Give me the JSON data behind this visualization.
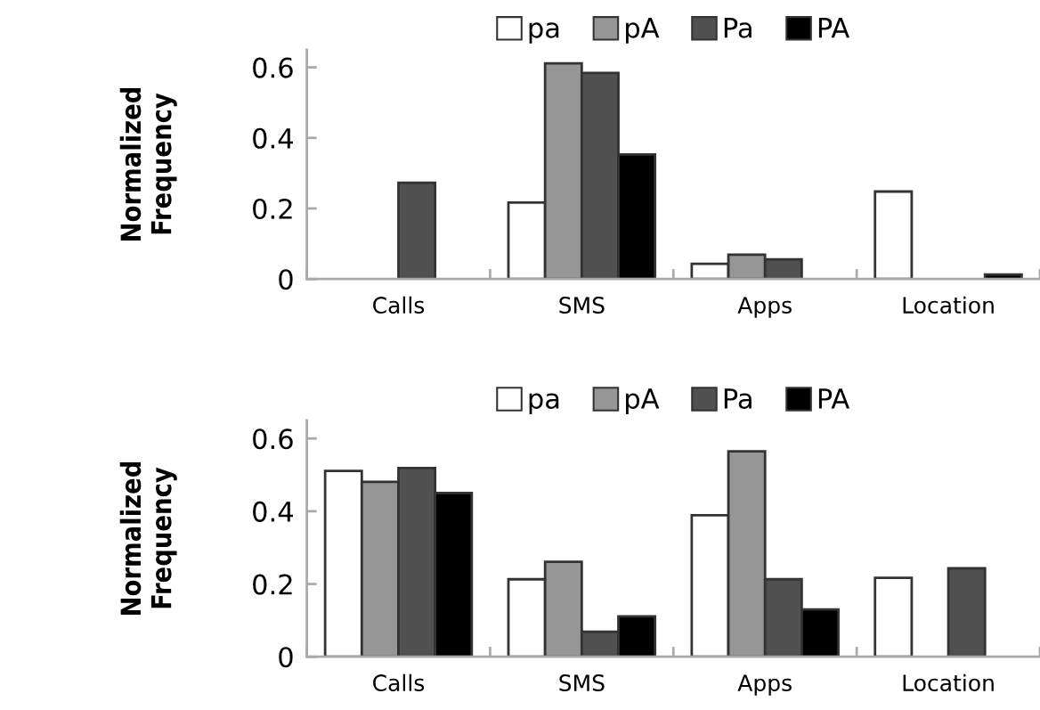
{
  "chart_data": [
    {
      "type": "bar",
      "ylabel": "Normalized\nFrequency",
      "categories": [
        "Calls",
        "SMS",
        "Apps",
        "Location"
      ],
      "ylim": [
        0,
        0.65
      ],
      "yticks": [
        0,
        0.2,
        0.4,
        0.6
      ],
      "legend": "top",
      "series": [
        {
          "name": "pa",
          "color": "#ffffff",
          "values": [
            null,
            0.217,
            0.043,
            0.248
          ]
        },
        {
          "name": "pA",
          "color": "#969696",
          "values": [
            null,
            0.611,
            0.069,
            null
          ]
        },
        {
          "name": "Pa",
          "color": "#505050",
          "values": [
            0.273,
            0.584,
            0.056,
            null
          ]
        },
        {
          "name": "PA",
          "color": "#000000",
          "values": [
            null,
            0.353,
            null,
            0.013
          ]
        }
      ]
    },
    {
      "type": "bar",
      "ylabel": "Normalized\nFrequency",
      "categories": [
        "Calls",
        "SMS",
        "Apps",
        "Location"
      ],
      "ylim": [
        0,
        0.65
      ],
      "yticks": [
        0,
        0.2,
        0.4,
        0.6
      ],
      "legend": "top",
      "series": [
        {
          "name": "pa",
          "color": "#ffffff",
          "values": [
            0.511,
            0.213,
            0.389,
            0.217
          ]
        },
        {
          "name": "pA",
          "color": "#969696",
          "values": [
            0.481,
            0.261,
            0.565,
            null
          ]
        },
        {
          "name": "Pa",
          "color": "#505050",
          "values": [
            0.519,
            0.069,
            0.213,
            0.243
          ]
        },
        {
          "name": "PA",
          "color": "#000000",
          "values": [
            0.45,
            0.111,
            0.13,
            null
          ]
        }
      ]
    }
  ]
}
